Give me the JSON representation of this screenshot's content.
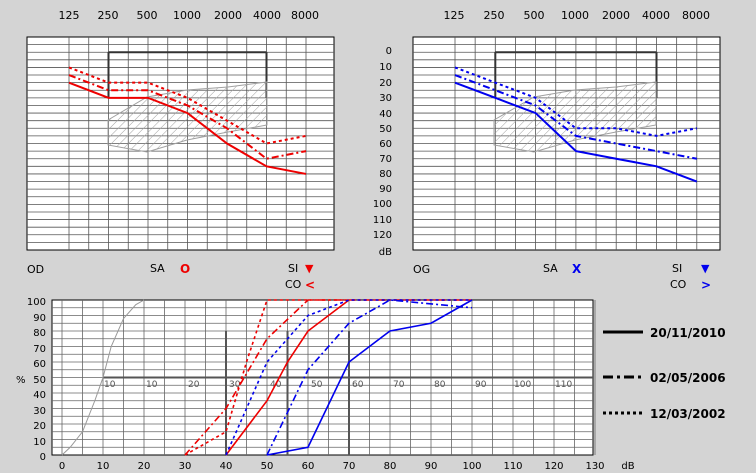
{
  "chart_data": [
    {
      "type": "line",
      "panel": "audiogram-right",
      "side_label": "OD",
      "x_ticks": [
        "125",
        "250",
        "500",
        "1000",
        "2000",
        "4000",
        "8000"
      ],
      "x": [
        125,
        250,
        500,
        1000,
        2000,
        4000,
        8000
      ],
      "x_scale": "log",
      "ylim": [
        -10,
        130
      ],
      "y_inverted": true,
      "shaded_region": "speech banana (hatched)",
      "series": [
        {
          "name": "20/11/2010",
          "style": "solid",
          "values": [
            20,
            30,
            30,
            40,
            60,
            75,
            80
          ]
        },
        {
          "name": "02/05/2006",
          "style": "dashdot",
          "values": [
            15,
            25,
            25,
            35,
            50,
            70,
            65
          ]
        },
        {
          "name": "12/03/2002",
          "style": "dotted",
          "values": [
            10,
            20,
            20,
            30,
            45,
            60,
            55
          ]
        }
      ],
      "color": "#ee0000",
      "legend_items": [
        {
          "label": "SA",
          "symbol": "O"
        },
        {
          "label": "SI",
          "symbol": "▼"
        },
        {
          "label": "CO",
          "symbol": "<"
        }
      ]
    },
    {
      "type": "line",
      "panel": "audiogram-left",
      "side_label": "OG",
      "x_ticks": [
        "125",
        "250",
        "500",
        "1000",
        "2000",
        "4000",
        "8000"
      ],
      "x": [
        125,
        250,
        500,
        1000,
        2000,
        4000,
        8000
      ],
      "x_scale": "log",
      "y_ticks": [
        "0",
        "10",
        "20",
        "30",
        "40",
        "50",
        "60",
        "70",
        "80",
        "90",
        "100",
        "110",
        "120"
      ],
      "ylabel": "dB",
      "ylim": [
        -10,
        130
      ],
      "y_inverted": true,
      "shaded_region": "speech banana (hatched)",
      "series": [
        {
          "name": "20/11/2010",
          "style": "solid",
          "values": [
            20,
            30,
            40,
            65,
            70,
            75,
            85
          ]
        },
        {
          "name": "02/05/2006",
          "style": "dashdot",
          "values": [
            15,
            25,
            35,
            55,
            60,
            65,
            70
          ]
        },
        {
          "name": "12/03/2002",
          "style": "dotted",
          "values": [
            10,
            20,
            30,
            50,
            50,
            55,
            50
          ]
        }
      ],
      "color": "#0000ee",
      "legend_items": [
        {
          "label": "SA",
          "symbol": "X"
        },
        {
          "label": "SI",
          "symbol": "▼"
        },
        {
          "label": "CO",
          "symbol": ">"
        }
      ]
    },
    {
      "type": "line",
      "panel": "speech-audiogram",
      "x_ticks": [
        "0",
        "10",
        "20",
        "30",
        "40",
        "50",
        "60",
        "70",
        "80",
        "90",
        "100",
        "110",
        "120",
        "130"
      ],
      "xlabel": "dB",
      "xlim": [
        0,
        135
      ],
      "y_ticks": [
        "0",
        "10",
        "20",
        "30",
        "40",
        "50",
        "60",
        "70",
        "80",
        "90",
        "100"
      ],
      "ylabel": "%",
      "ylim": [
        0,
        100
      ],
      "inner_x_labels": [
        "10",
        "10",
        "20",
        "30",
        "40",
        "50",
        "60",
        "70",
        "80",
        "90",
        "100",
        "110"
      ],
      "series": [
        {
          "name": "normal reference",
          "style": "solid",
          "color": "#999999",
          "x": [
            0,
            2,
            5,
            8,
            10,
            12,
            15,
            18,
            20
          ],
          "y": [
            0,
            5,
            15,
            35,
            50,
            70,
            88,
            97,
            100
          ]
        },
        {
          "name": "right 20/11/2010",
          "style": "solid",
          "color": "#ee0000",
          "x": [
            40,
            50,
            55,
            60,
            70
          ],
          "y": [
            0,
            35,
            60,
            80,
            100
          ]
        },
        {
          "name": "right 02/05/2006",
          "style": "dashdot",
          "color": "#ee0000",
          "x": [
            30,
            40,
            50,
            60,
            100
          ],
          "y": [
            0,
            30,
            75,
            100,
            100
          ]
        },
        {
          "name": "right 12/03/2002",
          "style": "dotted",
          "color": "#ee0000",
          "x": [
            30,
            40,
            45,
            50,
            100
          ],
          "y": [
            0,
            15,
            60,
            100,
            100
          ]
        },
        {
          "name": "left 20/11/2010",
          "style": "solid",
          "color": "#0000ee",
          "x": [
            50,
            60,
            70,
            80,
            90,
            100
          ],
          "y": [
            0,
            5,
            60,
            80,
            85,
            100
          ]
        },
        {
          "name": "left 02/05/2006",
          "style": "dashdot",
          "color": "#0000ee",
          "x": [
            50,
            60,
            70,
            80,
            100
          ],
          "y": [
            0,
            55,
            85,
            100,
            95
          ]
        },
        {
          "name": "left 12/03/2002",
          "style": "dotted",
          "color": "#0000ee",
          "x": [
            40,
            50,
            60,
            70,
            80,
            100
          ],
          "y": [
            0,
            60,
            90,
            100,
            100,
            100
          ]
        }
      ]
    }
  ],
  "legend": [
    {
      "label": "20/11/2010",
      "style": "solid"
    },
    {
      "label": "02/05/2006",
      "style": "dashdot"
    },
    {
      "label": "12/03/2002",
      "style": "dotted"
    }
  ],
  "colors": {
    "right": "#ee0000",
    "left": "#0000ee",
    "background": "#d4d4d4",
    "plot": "#ffffff",
    "reference": "#999999"
  }
}
